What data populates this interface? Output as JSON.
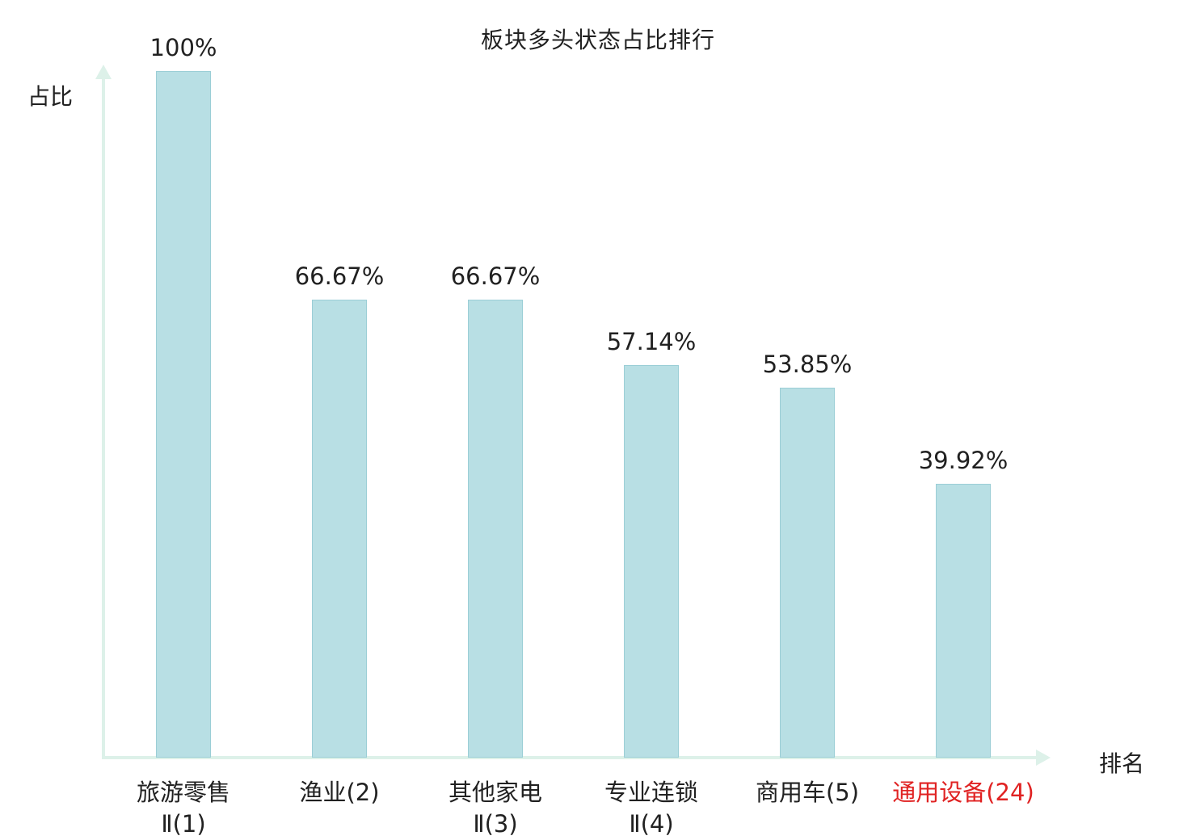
{
  "chart_data": {
    "type": "bar",
    "title": "板块多头状态占比排行",
    "xlabel": "排名",
    "ylabel": "占比",
    "categories": [
      {
        "line1": "旅游零售",
        "line2": "Ⅱ(1)",
        "color": "#212121"
      },
      {
        "line1": "渔业(2)",
        "line2": "",
        "color": "#212121"
      },
      {
        "line1": "其他家电",
        "line2": "Ⅱ(3)",
        "color": "#212121"
      },
      {
        "line1": "专业连锁",
        "line2": "Ⅱ(4)",
        "color": "#212121"
      },
      {
        "line1": "商用车(5)",
        "line2": "",
        "color": "#212121"
      },
      {
        "line1": "通用设备(24)",
        "line2": "",
        "color": "#e02222"
      }
    ],
    "values": [
      100,
      66.67,
      66.67,
      57.14,
      53.85,
      39.92
    ],
    "value_labels": [
      "100%",
      "66.67%",
      "66.67%",
      "57.14%",
      "53.85%",
      "39.92%"
    ],
    "ylim": [
      0,
      100
    ],
    "grid": false,
    "legend": false,
    "bar_color": "#b8dfe4",
    "bar_border_color": "#9bced6",
    "axis_color": "#ddf1e9",
    "background_color": "#ffffff"
  }
}
